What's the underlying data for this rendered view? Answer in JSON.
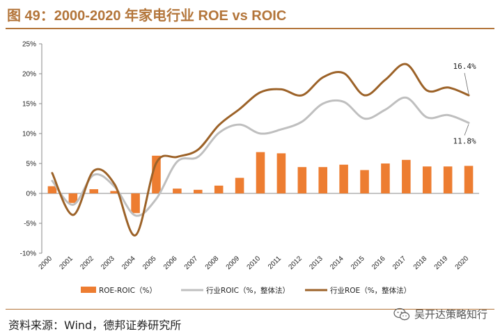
{
  "header": {
    "title": "图 49：2000-2020 年家电行业 ROE vs ROIC"
  },
  "footer": {
    "source": "资料来源：Wind，德邦证券研究所",
    "watermark": "吴开达策略知行"
  },
  "chart_data": {
    "type": "bar+line",
    "categories": [
      "2000",
      "2001",
      "2002",
      "2003",
      "2004",
      "2005",
      "2006",
      "2007",
      "2008",
      "2009",
      "2010",
      "2011",
      "2012",
      "2013",
      "2014",
      "2015",
      "2016",
      "2017",
      "2018",
      "2019",
      "2020"
    ],
    "y_ticks": [
      -10,
      -5,
      0,
      5,
      10,
      15,
      20,
      25
    ],
    "y_tick_labels": [
      "-10%",
      "-5%",
      "0%",
      "5%",
      "10%",
      "15%",
      "20%",
      "25%"
    ],
    "ylim": [
      -10,
      25
    ],
    "series": [
      {
        "name": "ROE-ROIC（%）",
        "kind": "bar",
        "color": "#ed7d31",
        "values": [
          1.2,
          -1.6,
          0.7,
          0.4,
          -3.3,
          6.3,
          0.8,
          0.6,
          1.3,
          2.6,
          6.9,
          6.7,
          4.4,
          4.4,
          4.8,
          3.9,
          5.0,
          5.6,
          4.5,
          4.5,
          4.6
        ]
      },
      {
        "name": "行业ROIC（%，整体法）",
        "kind": "line",
        "color": "#bfbfbf",
        "values": [
          2.1,
          -1.9,
          3.1,
          1.1,
          -3.7,
          -0.9,
          5.3,
          6.1,
          10.1,
          11.5,
          10.0,
          10.7,
          12.0,
          15.0,
          15.3,
          12.5,
          14.0,
          16.0,
          12.7,
          13.1,
          11.8
        ]
      },
      {
        "name": "行业ROE（%，整体法）",
        "kind": "line",
        "color": "#9c6228",
        "values": [
          3.4,
          -3.6,
          3.8,
          1.5,
          -7.0,
          5.1,
          6.1,
          7.3,
          11.4,
          14.1,
          16.9,
          17.4,
          16.4,
          19.4,
          20.1,
          16.4,
          19.0,
          21.6,
          17.2,
          17.7,
          16.4
        ]
      }
    ],
    "annotations": [
      {
        "text": "16.4%",
        "series": "行业ROE（%，整体法）",
        "category": "2020"
      },
      {
        "text": "11.8%",
        "series": "行业ROIC（%，整体法）",
        "category": "2020"
      }
    ]
  }
}
